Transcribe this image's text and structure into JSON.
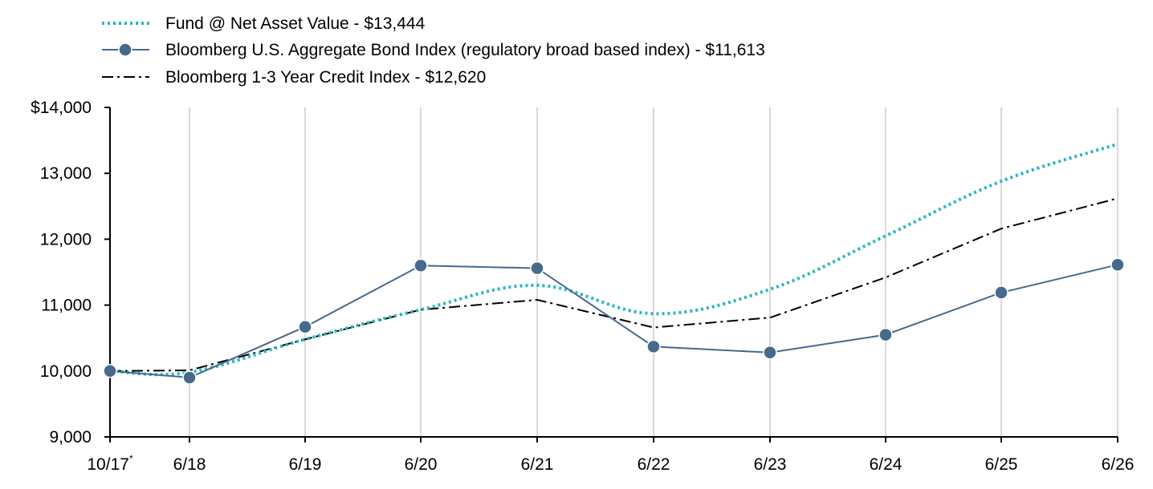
{
  "chart_data": {
    "type": "line",
    "x_labels": [
      "10/17",
      "6/18",
      "6/19",
      "6/20",
      "6/21",
      "6/22",
      "6/23",
      "6/24",
      "6/25",
      "6/26"
    ],
    "x_first_label_footnote": "*",
    "y_ticks": [
      "$14,000",
      "13,000",
      "12,000",
      "11,000",
      "10,000",
      "9,000"
    ],
    "ylim": [
      9000,
      14000
    ],
    "grid": "vertical",
    "legend_position": "top-left",
    "series": [
      {
        "name": "Fund @ Net Asset Value - $13,444",
        "color": "#26b8c0",
        "style": "dotted",
        "values": [
          10000,
          9980,
          10480,
          10930,
          11300,
          10870,
          11240,
          12050,
          12880,
          13444
        ]
      },
      {
        "name": "Bloomberg U.S. Aggregate Bond Index (regulatory broad based index) - $11,613",
        "color": "#466a8c",
        "style": "solid-markers",
        "values": [
          10000,
          9900,
          10670,
          11600,
          11560,
          10370,
          10280,
          10550,
          11190,
          11613
        ]
      },
      {
        "name": "Bloomberg 1-3 Year Credit Index - $12,620",
        "color": "#000000",
        "style": "dash-dot",
        "values": [
          10000,
          10010,
          10480,
          10930,
          11080,
          10660,
          10810,
          11420,
          12160,
          12620
        ]
      }
    ]
  }
}
